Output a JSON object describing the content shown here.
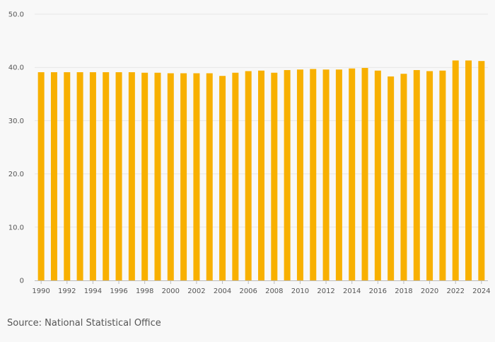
{
  "chart_data": {
    "type": "bar",
    "title": "",
    "xlabel": "",
    "ylabel": "",
    "categories": [
      "1990",
      "1991",
      "1992",
      "1993",
      "1994",
      "1995",
      "1996",
      "1997",
      "1998",
      "1999",
      "2000",
      "2001",
      "2002",
      "2003",
      "2004",
      "2005",
      "2006",
      "2007",
      "2008",
      "2009",
      "2010",
      "2011",
      "2012",
      "2013",
      "2014",
      "2015",
      "2016",
      "2017",
      "2018",
      "2019",
      "2020",
      "2021",
      "2022",
      "2023",
      "2024"
    ],
    "x_tick_labels": [
      "1990",
      "1992",
      "1994",
      "1996",
      "1998",
      "2000",
      "2002",
      "2004",
      "2006",
      "2008",
      "2010",
      "2012",
      "2014",
      "2016",
      "2018",
      "2020",
      "2022",
      "2024"
    ],
    "values": [
      39.1,
      39.1,
      39.1,
      39.1,
      39.1,
      39.1,
      39.1,
      39.1,
      39.0,
      39.0,
      38.9,
      38.9,
      38.9,
      38.9,
      38.4,
      39.0,
      39.3,
      39.4,
      39.0,
      39.5,
      39.6,
      39.7,
      39.6,
      39.6,
      39.8,
      39.9,
      39.4,
      38.3,
      38.8,
      39.5,
      39.3,
      39.4,
      41.3,
      41.3,
      41.2
    ],
    "ylim": [
      0,
      50
    ],
    "y_ticks": [
      "0",
      "10.0",
      "20.0",
      "30.0",
      "40.0",
      "50.0"
    ],
    "grid": true,
    "bar_color": "#f8b000",
    "legend": "none"
  },
  "source": "Source: National Statistical Office"
}
